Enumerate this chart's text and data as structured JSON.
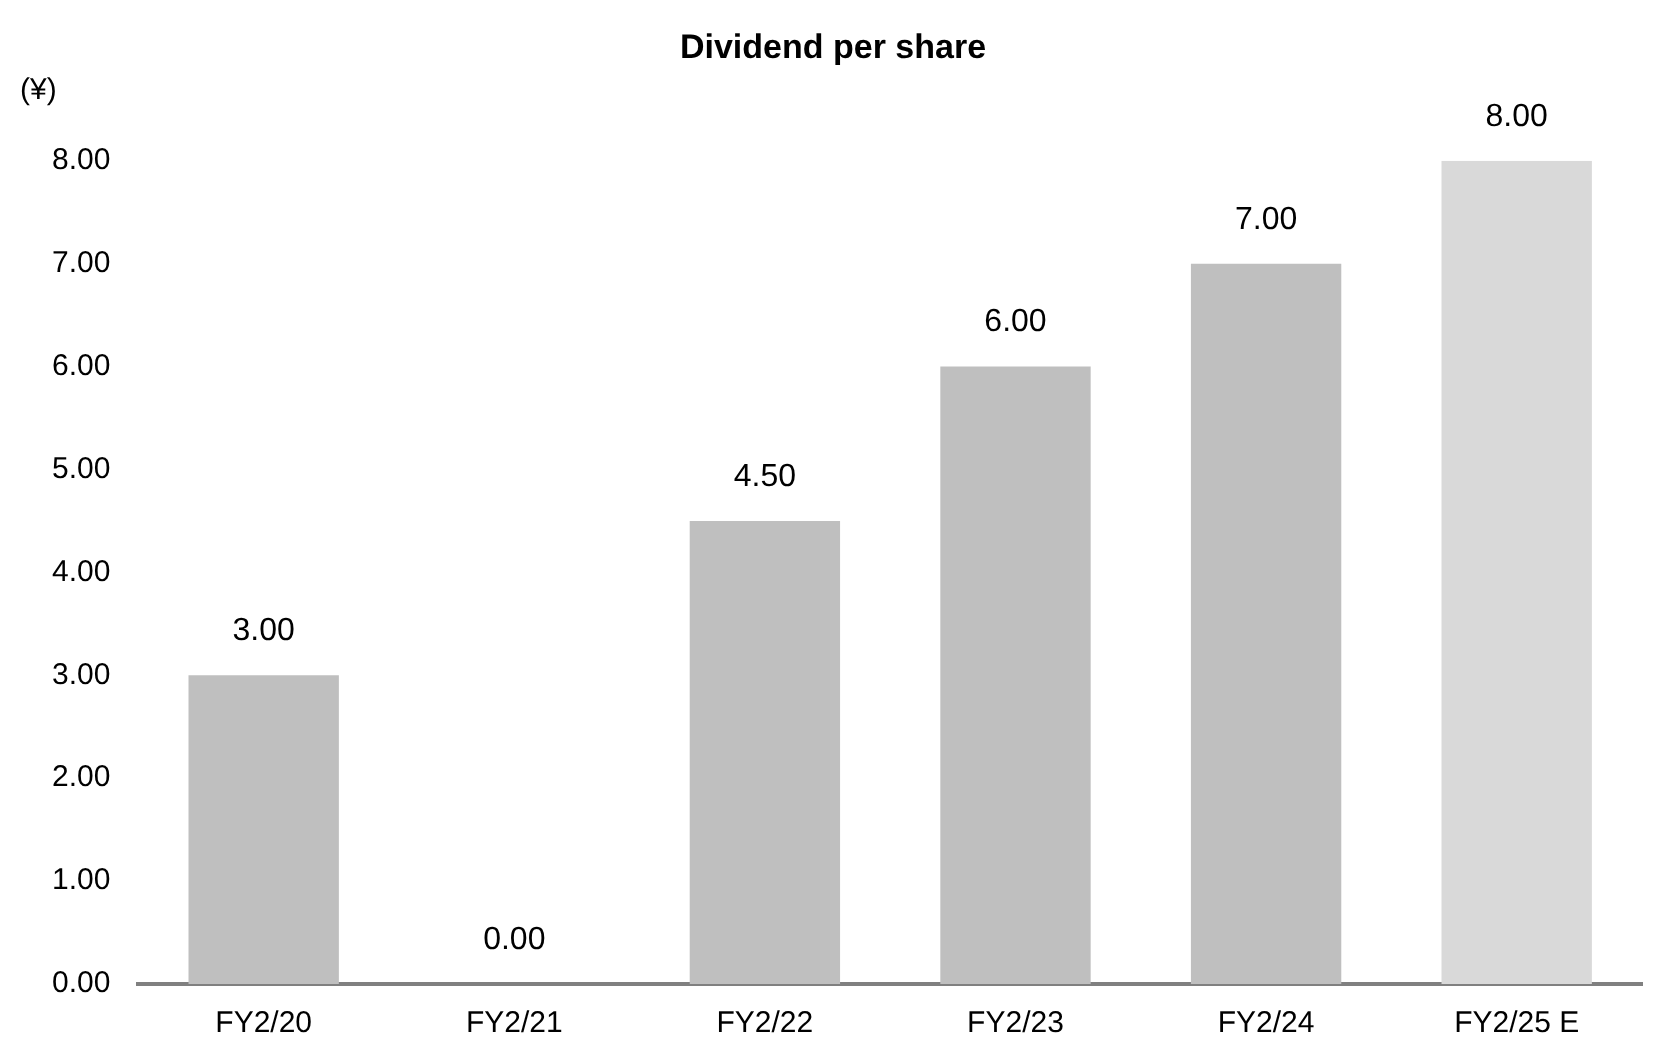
{
  "chart_data": {
    "type": "bar",
    "title": "Dividend per share",
    "ylabel": "(¥)",
    "categories": [
      "FY2/20",
      "FY2/21",
      "FY2/22",
      "FY2/23",
      "FY2/24",
      "FY2/25 E"
    ],
    "values": [
      3.0,
      0.0,
      4.5,
      6.0,
      7.0,
      8.0
    ],
    "colors": [
      "#bfbfbf",
      "#bfbfbf",
      "#bfbfbf",
      "#bfbfbf",
      "#bfbfbf",
      "#d9d9d9"
    ],
    "value_labels": [
      "3.00",
      "0.00",
      "4.50",
      "6.00",
      "7.00",
      "8.00"
    ],
    "ylim": [
      0,
      8
    ],
    "yticks": [
      {
        "value": 0,
        "label": "0.00"
      },
      {
        "value": 1,
        "label": "1.00"
      },
      {
        "value": 2,
        "label": "2.00"
      },
      {
        "value": 3,
        "label": "3.00"
      },
      {
        "value": 4,
        "label": "4.00"
      },
      {
        "value": 5,
        "label": "5.00"
      },
      {
        "value": 6,
        "label": "6.00"
      },
      {
        "value": 7,
        "label": "7.00"
      },
      {
        "value": 8,
        "label": "8.00"
      }
    ],
    "grid": false,
    "legend": false
  }
}
